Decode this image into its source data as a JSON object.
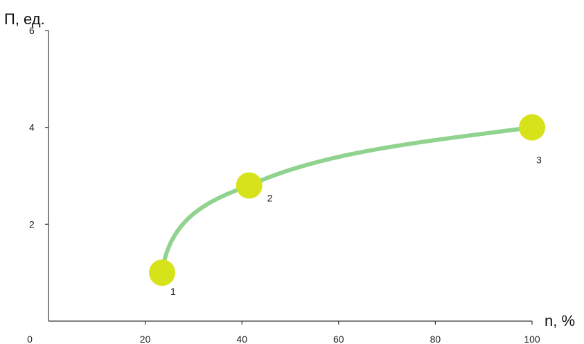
{
  "chart_data": {
    "type": "line",
    "ylabel": "П, ед.",
    "xlabel": "n, %",
    "xlim": [
      0,
      100
    ],
    "ylim": [
      0,
      6
    ],
    "x_ticks": [
      "0",
      "20",
      "40",
      "60",
      "80",
      "100"
    ],
    "y_ticks": [
      "2",
      "4",
      "6"
    ],
    "grid": false,
    "points": [
      {
        "label": "1",
        "x": 23.5,
        "y": 1.0
      },
      {
        "label": "2",
        "x": 41.5,
        "y": 2.8
      },
      {
        "label": "3",
        "x": 100,
        "y": 4.0
      }
    ],
    "line_color": "#8fd38f",
    "marker_color": "#d7e31a"
  }
}
